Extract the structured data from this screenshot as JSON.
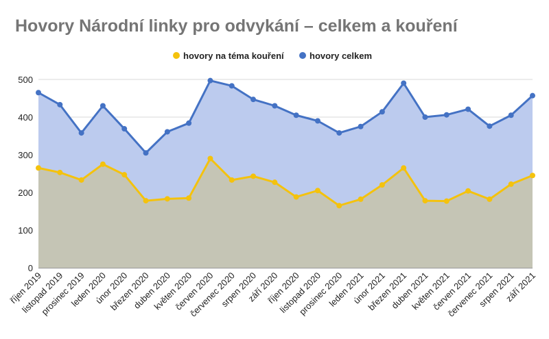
{
  "chart_data": {
    "type": "area",
    "title": "Hovory Národní linky pro odvykání – celkem a kouření",
    "xlabel": "",
    "ylabel": "",
    "ylim": [
      0,
      500
    ],
    "yticks": [
      0,
      100,
      200,
      300,
      400,
      500
    ],
    "grid": true,
    "legend_position": "top",
    "categories": [
      "říjen 2019",
      "listopad 2019",
      "prosinec 2019",
      "leden 2020",
      "únor 2020",
      "březen 2020",
      "duben 2020",
      "květen 2020",
      "červen 2020",
      "červenec 2020",
      "srpen 2020",
      "září 2020",
      "říjen 2020",
      "listopad 2020",
      "prosinec 2020",
      "leden 2021",
      "únor 2021",
      "březen 2021",
      "duben 2021",
      "květen 2021",
      "červen 2021",
      "červenec 2021",
      "srpen 2021",
      "září 2021"
    ],
    "series": [
      {
        "name": "hovory na téma kouření",
        "color": "#f4c20d",
        "fill": "#c5c5b5",
        "values": [
          265,
          253,
          233,
          275,
          247,
          178,
          183,
          185,
          290,
          233,
          243,
          227,
          188,
          205,
          165,
          182,
          220,
          265,
          178,
          177,
          204,
          182,
          222,
          245
        ]
      },
      {
        "name": "hovory celkem",
        "color": "#4472c4",
        "fill": "#bccbee",
        "values": [
          465,
          433,
          358,
          430,
          369,
          305,
          361,
          384,
          497,
          483,
          447,
          430,
          405,
          390,
          358,
          375,
          414,
          490,
          400,
          406,
          421,
          376,
          405,
          457
        ]
      }
    ]
  }
}
